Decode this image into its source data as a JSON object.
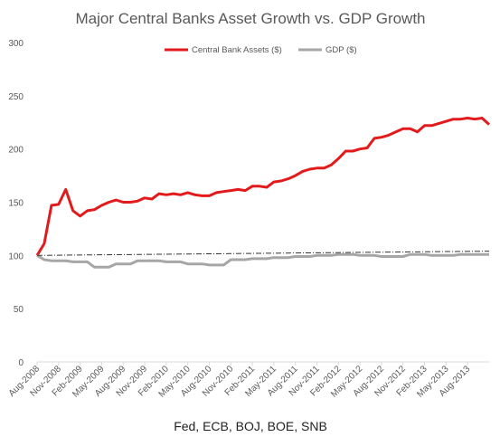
{
  "chart_data": {
    "type": "line",
    "title": "Major Central Banks Asset Growth vs. GDP Growth",
    "xlabel": "Fed, ECB, BOJ, BOE, SNB",
    "ylabel": "",
    "ylim": [
      0,
      300
    ],
    "yticks": [
      0,
      50,
      100,
      150,
      200,
      250,
      300
    ],
    "grid": false,
    "legend_position": "top-center",
    "x_tick_labels": [
      "Aug-2008",
      "Nov-2008",
      "Feb-2009",
      "May-2009",
      "Aug-2009",
      "Nov-2009",
      "Feb-2010",
      "May-2010",
      "Aug-2010",
      "Nov-2010",
      "Feb-2011",
      "May-2011",
      "Aug-2011",
      "Nov-2011",
      "Feb-2012",
      "May-2012",
      "Aug-2012",
      "Nov-2012",
      "Feb-2013",
      "May-2013",
      "Aug-2013"
    ],
    "x_count": 64,
    "series": [
      {
        "name": "Central Bank Assets ($)",
        "color": "#e31a1c",
        "values": [
          100,
          111,
          147,
          148,
          162,
          142,
          137,
          142,
          143,
          147,
          150,
          152,
          150,
          150,
          151,
          154,
          153,
          158,
          157,
          158,
          157,
          159,
          157,
          156,
          156,
          159,
          160,
          161,
          162,
          161,
          165,
          165,
          164,
          169,
          170,
          172,
          175,
          179,
          181,
          182,
          182,
          185,
          191,
          198,
          198,
          200,
          201,
          210,
          211,
          213,
          216,
          219,
          219,
          216,
          222,
          222,
          224,
          226,
          228,
          228,
          229,
          228,
          229,
          223
        ]
      },
      {
        "name": "GDP ($)",
        "color": "#a6a6a6",
        "values": [
          100,
          96,
          95,
          95,
          95,
          94,
          94,
          94,
          89,
          89,
          89,
          92,
          92,
          92,
          95,
          95,
          95,
          95,
          94,
          94,
          94,
          92,
          92,
          92,
          91,
          91,
          91,
          96,
          96,
          96,
          97,
          97,
          97,
          98,
          98,
          98,
          99,
          99,
          99,
          100,
          100,
          100,
          101,
          101,
          101,
          100,
          100,
          100,
          99,
          99,
          99,
          99,
          101,
          101,
          101,
          100,
          100,
          100,
          100,
          101,
          101,
          101,
          101,
          101
        ]
      },
      {
        "name": "",
        "color": "#333333",
        "style": "dash-dot",
        "values": [
          100,
          104
        ]
      }
    ]
  }
}
